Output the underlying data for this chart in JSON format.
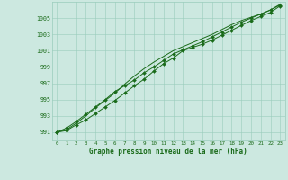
{
  "xlabel": "Graphe pression niveau de la mer (hPa)",
  "background_color": "#cce8e0",
  "plot_bg_color": "#cce8e0",
  "grid_color": "#99ccbb",
  "line_color": "#1a6b1a",
  "xlim_min": -0.5,
  "xlim_max": 23.5,
  "ylim_min": 990.0,
  "ylim_max": 1007.0,
  "yticks": [
    991,
    993,
    995,
    997,
    999,
    1001,
    1003,
    1005
  ],
  "xticks": [
    0,
    1,
    2,
    3,
    4,
    5,
    6,
    7,
    8,
    9,
    10,
    11,
    12,
    13,
    14,
    15,
    16,
    17,
    18,
    19,
    20,
    21,
    22,
    23
  ],
  "hours": [
    0,
    1,
    2,
    3,
    4,
    5,
    6,
    7,
    8,
    9,
    10,
    11,
    12,
    13,
    14,
    15,
    16,
    17,
    18,
    19,
    20,
    21,
    22,
    23
  ],
  "line1": [
    991.0,
    991.2,
    991.9,
    992.5,
    993.3,
    994.1,
    994.9,
    995.8,
    996.7,
    997.5,
    998.5,
    999.4,
    1000.1,
    1001.0,
    1001.4,
    1001.8,
    1002.3,
    1002.9,
    1003.5,
    1004.1,
    1004.7,
    1005.2,
    1005.7,
    1006.5
  ],
  "line2": [
    991.0,
    991.5,
    992.3,
    993.2,
    994.1,
    995.0,
    996.0,
    996.7,
    997.4,
    998.3,
    999.0,
    999.8,
    1000.6,
    1001.1,
    1001.6,
    1002.1,
    1002.7,
    1003.3,
    1003.9,
    1004.5,
    1005.0,
    1005.5,
    1006.0,
    1006.6
  ],
  "line3_upper": [
    991.0,
    991.3,
    992.1,
    993.0,
    994.0,
    994.9,
    995.8,
    996.9,
    997.9,
    998.8,
    999.6,
    1000.3,
    1001.0,
    1001.5,
    1002.0,
    1002.5,
    1003.0,
    1003.6,
    1004.2,
    1004.7,
    1005.1,
    1005.5,
    1006.0,
    1006.7
  ],
  "figwidth": 3.2,
  "figheight": 2.0,
  "dpi": 100
}
